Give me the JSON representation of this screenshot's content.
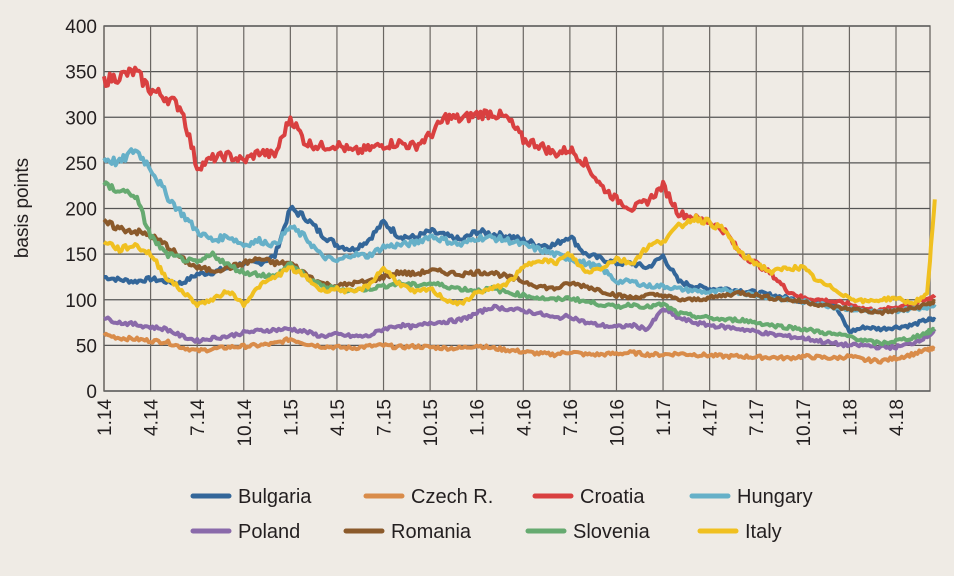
{
  "chart_data": {
    "type": "line",
    "title": "",
    "xlabel": "",
    "ylabel": "basis points",
    "ylim": [
      0,
      400
    ],
    "yticks": [
      0,
      50,
      100,
      150,
      200,
      250,
      300,
      350,
      400
    ],
    "xlim_months": [
      0,
      53.5
    ],
    "x_tick_labels": [
      "1.14",
      "4.14",
      "7.14",
      "10.14",
      "1.15",
      "4.15",
      "7.15",
      "10.15",
      "1.16",
      "4.16",
      "7.16",
      "10.16",
      "1.17",
      "4.17",
      "7.17",
      "10.17",
      "1.18",
      "4.18"
    ],
    "x_tick_months": [
      0,
      3,
      6,
      9,
      12,
      15,
      18,
      21,
      24,
      27,
      30,
      33,
      36,
      39,
      42,
      45,
      48,
      51
    ],
    "grid": true,
    "legend_position": "bottom",
    "x_months": [
      0,
      1,
      2,
      3,
      4,
      5,
      6,
      7,
      8,
      9,
      10,
      11,
      12,
      13,
      14,
      15,
      16,
      17,
      18,
      19,
      20,
      21,
      22,
      23,
      24,
      25,
      26,
      27,
      28,
      29,
      30,
      31,
      32,
      33,
      34,
      35,
      36,
      37,
      38,
      39,
      40,
      41,
      42,
      43,
      44,
      45,
      46,
      47,
      48,
      49,
      50,
      51,
      52,
      53,
      53.5
    ],
    "series": [
      {
        "name": "Bulgaria",
        "color": "#336699",
        "values": [
          125,
          122,
          120,
          123,
          120,
          118,
          128,
          130,
          135,
          140,
          140,
          148,
          200,
          190,
          172,
          160,
          155,
          165,
          185,
          170,
          168,
          175,
          170,
          165,
          175,
          172,
          170,
          165,
          160,
          160,
          170,
          150,
          145,
          140,
          140,
          135,
          148,
          120,
          115,
          112,
          112,
          110,
          108,
          105,
          102,
          98,
          98,
          96,
          65,
          70,
          68,
          70,
          72,
          78,
          78
        ]
      },
      {
        "name": "Czech R.",
        "color": "#d98c4a",
        "values": [
          62,
          58,
          57,
          55,
          54,
          48,
          44,
          46,
          48,
          49,
          50,
          52,
          57,
          52,
          49,
          48,
          47,
          49,
          50,
          48,
          49,
          48,
          47,
          47,
          50,
          47,
          45,
          43,
          41,
          40,
          43,
          40,
          40,
          41,
          42,
          40,
          40,
          41,
          40,
          39,
          38,
          38,
          37,
          37,
          36,
          38,
          37,
          36,
          38,
          34,
          33,
          36,
          40,
          45,
          46
        ]
      },
      {
        "name": "Croatia",
        "color": "#d94040",
        "values": [
          340,
          345,
          350,
          330,
          322,
          310,
          245,
          255,
          258,
          252,
          262,
          258,
          300,
          272,
          268,
          270,
          262,
          265,
          270,
          272,
          268,
          280,
          300,
          298,
          303,
          305,
          298,
          275,
          270,
          260,
          265,
          250,
          225,
          210,
          200,
          208,
          225,
          195,
          190,
          185,
          175,
          150,
          140,
          128,
          110,
          102,
          100,
          98,
          95,
          90,
          88,
          92,
          95,
          100,
          105
        ]
      },
      {
        "name": "Hungary",
        "color": "#66b0c8",
        "values": [
          255,
          250,
          265,
          245,
          215,
          195,
          175,
          165,
          170,
          160,
          165,
          160,
          180,
          168,
          148,
          142,
          150,
          148,
          158,
          160,
          162,
          170,
          165,
          160,
          168,
          168,
          165,
          160,
          155,
          150,
          145,
          140,
          135,
          120,
          120,
          115,
          115,
          112,
          110,
          108,
          110,
          108,
          105,
          102,
          100,
          98,
          96,
          92,
          90,
          88,
          86,
          88,
          90,
          92,
          95
        ]
      },
      {
        "name": "Poland",
        "color": "#8a6aaa",
        "values": [
          80,
          75,
          73,
          70,
          68,
          60,
          55,
          58,
          60,
          64,
          66,
          67,
          68,
          65,
          60,
          62,
          60,
          60,
          68,
          72,
          70,
          75,
          76,
          78,
          85,
          92,
          90,
          88,
          85,
          80,
          82,
          75,
          72,
          70,
          72,
          68,
          90,
          80,
          75,
          72,
          70,
          68,
          65,
          62,
          60,
          58,
          55,
          52,
          50,
          50,
          48,
          48,
          52,
          60,
          65
        ]
      },
      {
        "name": "Romania",
        "color": "#8b5a2b",
        "values": [
          185,
          178,
          175,
          170,
          160,
          145,
          135,
          132,
          135,
          140,
          145,
          140,
          140,
          128,
          118,
          115,
          118,
          120,
          125,
          130,
          128,
          132,
          130,
          128,
          130,
          130,
          125,
          120,
          115,
          112,
          118,
          115,
          110,
          105,
          102,
          105,
          105,
          100,
          100,
          102,
          105,
          108,
          105,
          102,
          100,
          98,
          95,
          92,
          90,
          88,
          86,
          88,
          90,
          95,
          98
        ]
      },
      {
        "name": "Slovenia",
        "color": "#66aa70",
        "values": [
          225,
          220,
          215,
          170,
          150,
          145,
          140,
          150,
          138,
          130,
          128,
          125,
          140,
          125,
          115,
          112,
          110,
          112,
          115,
          118,
          116,
          118,
          115,
          112,
          110,
          112,
          108,
          105,
          102,
          100,
          102,
          98,
          95,
          92,
          95,
          92,
          95,
          85,
          82,
          80,
          78,
          78,
          75,
          72,
          70,
          68,
          65,
          62,
          60,
          55,
          52,
          55,
          58,
          64,
          68
        ]
      },
      {
        "name": "Italy",
        "color": "#f0c020",
        "values": [
          165,
          155,
          160,
          150,
          125,
          110,
          95,
          100,
          110,
          95,
          115,
          125,
          135,
          125,
          110,
          112,
          108,
          115,
          135,
          118,
          108,
          112,
          100,
          95,
          108,
          112,
          118,
          135,
          145,
          140,
          150,
          130,
          135,
          145,
          140,
          158,
          165,
          180,
          190,
          185,
          175,
          150,
          140,
          130,
          135,
          135,
          120,
          112,
          102,
          98,
          100,
          102,
          96,
          105,
          210
        ]
      }
    ]
  },
  "legend": [
    {
      "label": "Bulgaria",
      "color": "#336699"
    },
    {
      "label": "Czech R.",
      "color": "#d98c4a"
    },
    {
      "label": "Croatia",
      "color": "#d94040"
    },
    {
      "label": "Hungary",
      "color": "#66b0c8"
    },
    {
      "label": "Poland",
      "color": "#8a6aaa"
    },
    {
      "label": "Romania",
      "color": "#8b5a2b"
    },
    {
      "label": "Slovenia",
      "color": "#66aa70"
    },
    {
      "label": "Italy",
      "color": "#f0c020"
    }
  ]
}
